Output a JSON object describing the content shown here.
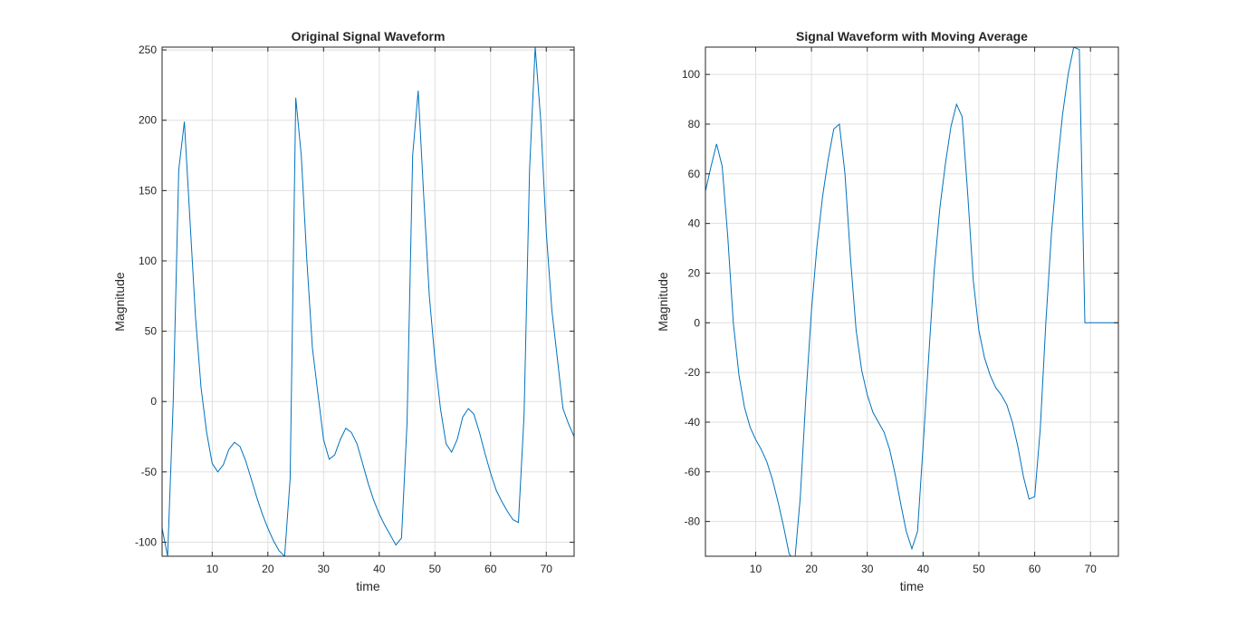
{
  "chart_data": [
    {
      "type": "line",
      "title": "Original Signal Waveform",
      "xlabel": "time",
      "ylabel": "Magnitude",
      "xlim": [
        1,
        75
      ],
      "ylim": [
        -110,
        252
      ],
      "xticks": [
        10,
        20,
        30,
        40,
        50,
        60,
        70
      ],
      "yticks": [
        -100,
        -50,
        0,
        50,
        100,
        150,
        200,
        250
      ],
      "grid": true,
      "line_color": "#0072BD",
      "series": [
        {
          "x": [
            1,
            2,
            3,
            4,
            5,
            6,
            7,
            8,
            9,
            10,
            11,
            12,
            13,
            14,
            15,
            16,
            17,
            18,
            19,
            20,
            21,
            22,
            23,
            24,
            25,
            26,
            27,
            28,
            29,
            30,
            31,
            32,
            33,
            34,
            35,
            36,
            37,
            38,
            39,
            40,
            41,
            42,
            43,
            44,
            45,
            46,
            47,
            48,
            49,
            50,
            51,
            52,
            53,
            54,
            55,
            56,
            57,
            58,
            59,
            60,
            61,
            62,
            63,
            64,
            65,
            66,
            67,
            68,
            69,
            70,
            71,
            72,
            73,
            74,
            75
          ],
          "values": [
            -90,
            -110,
            0,
            165,
            199,
            130,
            60,
            10,
            -22,
            -44,
            -50,
            -45,
            -34,
            -29,
            -32,
            -42,
            -55,
            -68,
            -80,
            -90,
            -99,
            -106,
            -110,
            -55,
            216,
            175,
            100,
            38,
            5,
            -27,
            -41,
            -38,
            -27,
            -19,
            -22,
            -30,
            -44,
            -58,
            -70,
            -80,
            -88,
            -95,
            -102,
            -97,
            -15,
            175,
            221,
            145,
            75,
            30,
            -5,
            -30,
            -36,
            -27,
            -11,
            -5,
            -9,
            -22,
            -37,
            -51,
            -63,
            -71,
            -78,
            -84,
            -86,
            -10,
            165,
            252,
            200,
            120,
            65,
            30,
            -5,
            -16,
            -25
          ]
        }
      ]
    },
    {
      "type": "line",
      "title": "Signal Waveform with Moving Average",
      "xlabel": "time",
      "ylabel": "Magnitude",
      "xlim": [
        1,
        75
      ],
      "ylim": [
        -94,
        111
      ],
      "xticks": [
        10,
        20,
        30,
        40,
        50,
        60,
        70
      ],
      "yticks": [
        -80,
        -60,
        -40,
        -20,
        0,
        20,
        40,
        60,
        80,
        100
      ],
      "grid": true,
      "line_color": "#0072BD",
      "series": [
        {
          "x": [
            1,
            2,
            3,
            4,
            5,
            6,
            7,
            8,
            9,
            10,
            11,
            12,
            13,
            14,
            15,
            16,
            17,
            18,
            19,
            20,
            21,
            22,
            23,
            24,
            25,
            26,
            27,
            28,
            29,
            30,
            31,
            32,
            33,
            34,
            35,
            36,
            37,
            38,
            39,
            40,
            41,
            42,
            43,
            44,
            45,
            46,
            47,
            48,
            49,
            50,
            51,
            52,
            53,
            54,
            55,
            56,
            57,
            58,
            59,
            60,
            61,
            62,
            63,
            64,
            65,
            66,
            67,
            68,
            69,
            70,
            71,
            72,
            73,
            74,
            75
          ],
          "values": [
            53,
            63,
            72,
            63,
            35,
            0,
            -21,
            -34,
            -42,
            -47,
            -51,
            -56,
            -63,
            -72,
            -82,
            -93,
            -96,
            -70,
            -30,
            5,
            31,
            51,
            66,
            78,
            80,
            60,
            26,
            -3,
            -19,
            -29,
            -36,
            -40,
            -44,
            -51,
            -61,
            -73,
            -84,
            -91,
            -84,
            -50,
            -14,
            21,
            46,
            64,
            79,
            88,
            83,
            52,
            17,
            -3,
            -14,
            -21,
            -26,
            -29,
            -33,
            -40,
            -50,
            -62,
            -71,
            -70,
            -43,
            0,
            36,
            62,
            84,
            100,
            111,
            110,
            0,
            0,
            0,
            0,
            0,
            0,
            0
          ]
        }
      ]
    }
  ]
}
